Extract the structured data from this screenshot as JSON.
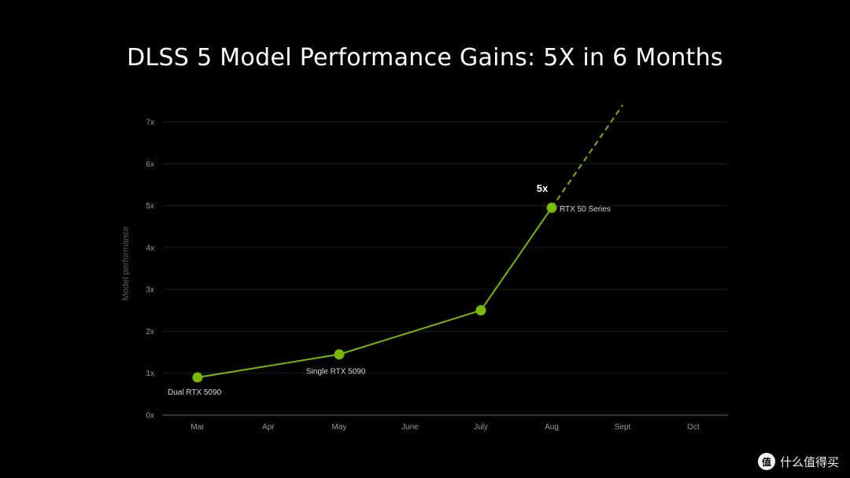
{
  "chart_data": {
    "type": "line",
    "title": "DLSS 5 Model Performance Gains: 5X in 6 Months",
    "ylabel": "Model performance",
    "xlabel": "",
    "categories": [
      "Mar",
      "Apr",
      "May",
      "June",
      "July",
      "Aug",
      "Sept",
      "Oct"
    ],
    "y_ticks": [
      "0x",
      "1x",
      "2x",
      "3x",
      "4x",
      "5x",
      "6x",
      "7x"
    ],
    "ylim": [
      0,
      7
    ],
    "grid": true,
    "series": [
      {
        "style": "solid",
        "color": "#76b900",
        "points": [
          {
            "x": "Mar",
            "y": 0.9,
            "label": "Dual RTX 5090"
          },
          {
            "x": "May",
            "y": 1.45,
            "label": "Single RTX 5090"
          },
          {
            "x": "July",
            "y": 2.5,
            "label": ""
          },
          {
            "x": "Aug",
            "y": 4.95,
            "label": "RTX 50 Series"
          }
        ]
      },
      {
        "style": "dashed",
        "color": "#76b900",
        "points": [
          {
            "x": "Aug",
            "y": 4.95
          },
          {
            "x": "Sept",
            "y": 7.4
          }
        ]
      }
    ],
    "annotations": [
      {
        "text": "5x",
        "x": "Aug",
        "y": 4.95
      }
    ]
  },
  "watermark": {
    "icon_text": "值",
    "text": "什么值得买"
  }
}
